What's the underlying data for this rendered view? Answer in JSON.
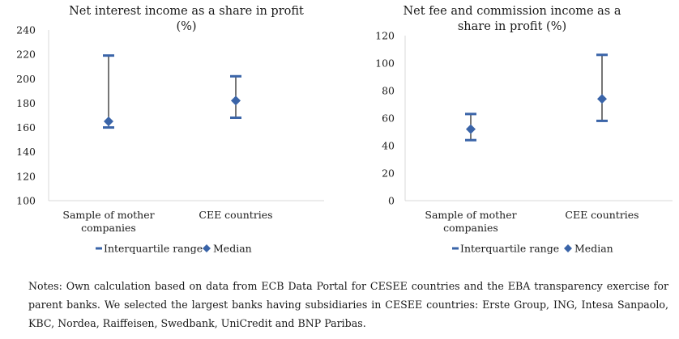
{
  "chart_data": [
    {
      "type": "error-range",
      "title_lines": [
        "Net interest income as a share in profit",
        "(%)"
      ],
      "categories": [
        [
          "Sample of mother",
          "companies"
        ],
        [
          "CEE countries"
        ]
      ],
      "ylim": [
        100,
        240
      ],
      "yticks": [
        100,
        120,
        140,
        160,
        180,
        200,
        220,
        240
      ],
      "series": [
        {
          "name": "Interquartile range",
          "low": [
            160,
            168
          ],
          "high": [
            219,
            202
          ]
        },
        {
          "name": "Median",
          "values": [
            165,
            182
          ]
        }
      ],
      "legend_position": "bottom"
    },
    {
      "type": "error-range",
      "title_lines": [
        "Net fee and commission income as a",
        "share in profit (%)"
      ],
      "categories": [
        [
          "Sample of mother",
          "companies"
        ],
        [
          "CEE countries"
        ]
      ],
      "ylim": [
        0,
        120
      ],
      "yticks": [
        0,
        20,
        40,
        60,
        80,
        100,
        120
      ],
      "series": [
        {
          "name": "Interquartile range",
          "low": [
            44,
            58
          ],
          "high": [
            63,
            106
          ]
        },
        {
          "name": "Median",
          "values": [
            52,
            74
          ]
        }
      ],
      "legend_position": "bottom"
    }
  ],
  "colors": {
    "marker": "#3a64a8",
    "whisker": "#1a1a1a"
  },
  "notes": "Notes: Own calculation based on data from ECB Data Portal for CESEE countries and the EBA transparency exercise for parent banks. We selected the largest banks having subsidiaries in CESEE countries: Erste Group, ING, Intesa Sanpaolo, KBC, Nordea, Raiffeisen, Swedbank, UniCredit and BNP Paribas."
}
